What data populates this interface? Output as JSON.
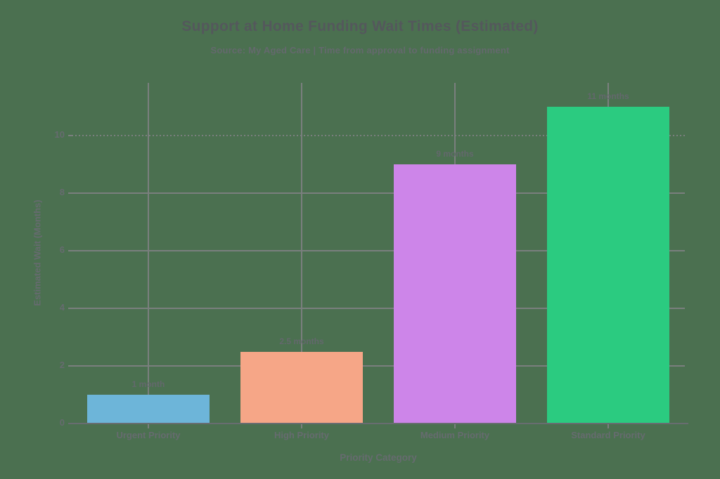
{
  "page": {
    "background_color": "#4b7050"
  },
  "chart_data": {
    "type": "bar",
    "title": "Support at Home Funding Wait Times (Estimated)",
    "subtitle": "Source: My Aged Care | Time from approval to funding assignment",
    "xlabel": "Priority Category",
    "ylabel": "Estimated Wait (Months)",
    "categories": [
      "Urgent Priority",
      "High Priority",
      "Medium Priority",
      "Standard Priority"
    ],
    "values": [
      1,
      2.5,
      9,
      11
    ],
    "bar_labels": [
      "1 month",
      "2.5 months",
      "9 months",
      "11 months"
    ],
    "bar_colors": [
      "#6db5d9",
      "#f6a687",
      "#cd85e9",
      "#2bcb80"
    ],
    "ylim": [
      0,
      11.83
    ],
    "yticks": [
      0,
      2,
      4,
      6,
      8,
      10
    ],
    "grid": true,
    "dotted_gridlines_at": [
      10
    ],
    "legend_position": "none",
    "title_color": "#54585c",
    "subtitle_color": "#64696d",
    "label_color": "#63686c",
    "tick_color": "#666b6f",
    "grid_color": "#7a7f7e",
    "axis_color": "#686d70"
  }
}
